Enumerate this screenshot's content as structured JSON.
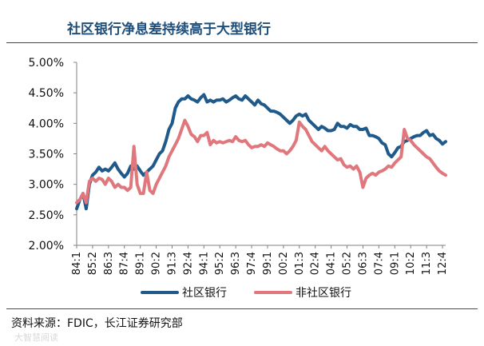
{
  "title": "社区银行净息差持续高于大型银行",
  "source": "资料来源：FDIC，长江证券研究部",
  "watermark": "大智慧阅读",
  "colors": {
    "title": "#1f4e79",
    "series_blue": "#1f5a8a",
    "series_pink": "#e0777d",
    "axis": "#808080"
  },
  "chart_data": {
    "type": "line",
    "title": "",
    "xlabel": "",
    "ylabel": "",
    "ylim": [
      2.0,
      5.0
    ],
    "yticks": [
      "2.00%",
      "2.50%",
      "3.00%",
      "3.50%",
      "4.00%",
      "4.50%",
      "5.00%"
    ],
    "ytick_values": [
      2.0,
      2.5,
      3.0,
      3.5,
      4.0,
      4.5,
      5.0
    ],
    "x_range": [
      1984.0,
      2013.0
    ],
    "xticks": [
      "84:1",
      "85:2",
      "86:3",
      "87:4",
      "89:1",
      "90:2",
      "91:3",
      "92:4",
      "94:1",
      "95:2",
      "96:3",
      "97:4",
      "99:1",
      "00:2",
      "01:3",
      "02:4",
      "04:1",
      "05:2",
      "06:3",
      "07:4",
      "09:1",
      "10:2",
      "11:3",
      "12:4"
    ],
    "xtick_values": [
      1984.0,
      1985.25,
      1986.5,
      1987.75,
      1989.0,
      1990.25,
      1991.5,
      1992.75,
      1994.0,
      1995.25,
      1996.5,
      1997.75,
      1999.0,
      2000.25,
      2001.5,
      2002.75,
      2004.0,
      2005.25,
      2006.5,
      2007.75,
      2009.0,
      2010.25,
      2011.5,
      2012.75
    ],
    "legend": "bottom",
    "grid": false,
    "series": [
      {
        "name": "社区银行",
        "color": "#1f5a8a",
        "points": [
          [
            1984.0,
            2.6
          ],
          [
            1984.25,
            2.75
          ],
          [
            1984.5,
            2.85
          ],
          [
            1984.75,
            2.6
          ],
          [
            1985.0,
            3.0
          ],
          [
            1985.25,
            3.15
          ],
          [
            1985.5,
            3.2
          ],
          [
            1985.75,
            3.28
          ],
          [
            1986.0,
            3.22
          ],
          [
            1986.25,
            3.25
          ],
          [
            1986.5,
            3.22
          ],
          [
            1986.75,
            3.28
          ],
          [
            1987.0,
            3.35
          ],
          [
            1987.25,
            3.25
          ],
          [
            1987.5,
            3.18
          ],
          [
            1987.75,
            3.12
          ],
          [
            1988.0,
            3.18
          ],
          [
            1988.25,
            3.3
          ],
          [
            1988.5,
            3.25
          ],
          [
            1988.75,
            3.3
          ],
          [
            1989.0,
            3.22
          ],
          [
            1989.25,
            3.15
          ],
          [
            1989.5,
            3.2
          ],
          [
            1989.75,
            3.25
          ],
          [
            1990.0,
            3.3
          ],
          [
            1990.25,
            3.4
          ],
          [
            1990.5,
            3.5
          ],
          [
            1990.75,
            3.55
          ],
          [
            1991.0,
            3.7
          ],
          [
            1991.25,
            3.9
          ],
          [
            1991.5,
            4.0
          ],
          [
            1991.75,
            4.25
          ],
          [
            1992.0,
            4.35
          ],
          [
            1992.25,
            4.4
          ],
          [
            1992.5,
            4.4
          ],
          [
            1992.75,
            4.45
          ],
          [
            1993.0,
            4.4
          ],
          [
            1993.25,
            4.38
          ],
          [
            1993.5,
            4.35
          ],
          [
            1993.75,
            4.42
          ],
          [
            1994.0,
            4.47
          ],
          [
            1994.25,
            4.35
          ],
          [
            1994.5,
            4.38
          ],
          [
            1994.75,
            4.35
          ],
          [
            1995.0,
            4.38
          ],
          [
            1995.25,
            4.38
          ],
          [
            1995.5,
            4.4
          ],
          [
            1995.75,
            4.35
          ],
          [
            1996.0,
            4.38
          ],
          [
            1996.25,
            4.42
          ],
          [
            1996.5,
            4.45
          ],
          [
            1996.75,
            4.4
          ],
          [
            1997.0,
            4.38
          ],
          [
            1997.25,
            4.45
          ],
          [
            1997.5,
            4.4
          ],
          [
            1997.75,
            4.35
          ],
          [
            1998.0,
            4.3
          ],
          [
            1998.25,
            4.38
          ],
          [
            1998.5,
            4.32
          ],
          [
            1998.75,
            4.3
          ],
          [
            1999.0,
            4.25
          ],
          [
            1999.25,
            4.2
          ],
          [
            1999.5,
            4.2
          ],
          [
            1999.75,
            4.18
          ],
          [
            2000.0,
            4.15
          ],
          [
            2000.25,
            4.1
          ],
          [
            2000.5,
            4.05
          ],
          [
            2000.75,
            4.0
          ],
          [
            2001.0,
            4.05
          ],
          [
            2001.25,
            4.12
          ],
          [
            2001.5,
            4.15
          ],
          [
            2001.75,
            4.12
          ],
          [
            2002.0,
            4.15
          ],
          [
            2002.25,
            4.05
          ],
          [
            2002.5,
            4.0
          ],
          [
            2002.75,
            3.95
          ],
          [
            2003.0,
            3.9
          ],
          [
            2003.25,
            3.95
          ],
          [
            2003.5,
            3.92
          ],
          [
            2003.75,
            3.88
          ],
          [
            2004.0,
            3.88
          ],
          [
            2004.25,
            3.9
          ],
          [
            2004.5,
            4.0
          ],
          [
            2004.75,
            3.95
          ],
          [
            2005.0,
            3.95
          ],
          [
            2005.25,
            3.92
          ],
          [
            2005.5,
            3.98
          ],
          [
            2005.75,
            3.95
          ],
          [
            2006.0,
            3.95
          ],
          [
            2006.25,
            3.9
          ],
          [
            2006.5,
            3.9
          ],
          [
            2006.75,
            3.92
          ],
          [
            2007.0,
            3.8
          ],
          [
            2007.25,
            3.8
          ],
          [
            2007.5,
            3.78
          ],
          [
            2007.75,
            3.75
          ],
          [
            2008.0,
            3.68
          ],
          [
            2008.25,
            3.65
          ],
          [
            2008.5,
            3.5
          ],
          [
            2008.75,
            3.45
          ],
          [
            2009.0,
            3.52
          ],
          [
            2009.25,
            3.6
          ],
          [
            2009.5,
            3.62
          ],
          [
            2009.75,
            3.7
          ],
          [
            2010.0,
            3.72
          ],
          [
            2010.25,
            3.75
          ],
          [
            2010.5,
            3.78
          ],
          [
            2010.75,
            3.8
          ],
          [
            2011.0,
            3.8
          ],
          [
            2011.25,
            3.85
          ],
          [
            2011.5,
            3.88
          ],
          [
            2011.75,
            3.8
          ],
          [
            2012.0,
            3.82
          ],
          [
            2012.25,
            3.75
          ],
          [
            2012.5,
            3.72
          ],
          [
            2012.75,
            3.66
          ],
          [
            2013.0,
            3.7
          ]
        ]
      },
      {
        "name": "非社区银行",
        "color": "#e0777d",
        "points": [
          [
            1984.0,
            2.7
          ],
          [
            1984.25,
            2.75
          ],
          [
            1984.5,
            2.85
          ],
          [
            1984.75,
            2.7
          ],
          [
            1985.0,
            3.05
          ],
          [
            1985.25,
            3.1
          ],
          [
            1985.5,
            3.05
          ],
          [
            1985.75,
            3.1
          ],
          [
            1986.0,
            3.08
          ],
          [
            1986.25,
            3.0
          ],
          [
            1986.5,
            3.1
          ],
          [
            1986.75,
            3.05
          ],
          [
            1987.0,
            2.95
          ],
          [
            1987.25,
            3.0
          ],
          [
            1987.5,
            2.95
          ],
          [
            1987.75,
            2.95
          ],
          [
            1988.0,
            2.9
          ],
          [
            1988.25,
            2.95
          ],
          [
            1988.5,
            3.62
          ],
          [
            1988.75,
            3.0
          ],
          [
            1989.0,
            2.85
          ],
          [
            1989.25,
            2.85
          ],
          [
            1989.5,
            3.2
          ],
          [
            1989.75,
            2.9
          ],
          [
            1990.0,
            2.85
          ],
          [
            1990.25,
            3.0
          ],
          [
            1990.5,
            3.1
          ],
          [
            1990.75,
            3.2
          ],
          [
            1991.0,
            3.3
          ],
          [
            1991.25,
            3.45
          ],
          [
            1991.5,
            3.55
          ],
          [
            1991.75,
            3.65
          ],
          [
            1992.0,
            3.75
          ],
          [
            1992.25,
            3.9
          ],
          [
            1992.5,
            4.05
          ],
          [
            1992.75,
            3.95
          ],
          [
            1993.0,
            3.82
          ],
          [
            1993.25,
            3.78
          ],
          [
            1993.5,
            3.7
          ],
          [
            1993.75,
            3.8
          ],
          [
            1994.0,
            3.8
          ],
          [
            1994.25,
            3.85
          ],
          [
            1994.5,
            3.65
          ],
          [
            1994.75,
            3.72
          ],
          [
            1995.0,
            3.68
          ],
          [
            1995.25,
            3.7
          ],
          [
            1995.5,
            3.68
          ],
          [
            1995.75,
            3.7
          ],
          [
            1996.0,
            3.72
          ],
          [
            1996.25,
            3.7
          ],
          [
            1996.5,
            3.78
          ],
          [
            1996.75,
            3.72
          ],
          [
            1997.0,
            3.7
          ],
          [
            1997.25,
            3.72
          ],
          [
            1997.5,
            3.65
          ],
          [
            1997.75,
            3.6
          ],
          [
            1998.0,
            3.62
          ],
          [
            1998.25,
            3.62
          ],
          [
            1998.5,
            3.65
          ],
          [
            1998.75,
            3.62
          ],
          [
            1999.0,
            3.68
          ],
          [
            1999.25,
            3.65
          ],
          [
            1999.5,
            3.62
          ],
          [
            1999.75,
            3.58
          ],
          [
            2000.0,
            3.55
          ],
          [
            2000.25,
            3.55
          ],
          [
            2000.5,
            3.5
          ],
          [
            2000.75,
            3.55
          ],
          [
            2001.0,
            3.62
          ],
          [
            2001.25,
            3.72
          ],
          [
            2001.5,
            4.02
          ],
          [
            2001.75,
            3.95
          ],
          [
            2002.0,
            3.9
          ],
          [
            2002.25,
            3.8
          ],
          [
            2002.5,
            3.7
          ],
          [
            2002.75,
            3.65
          ],
          [
            2003.0,
            3.6
          ],
          [
            2003.25,
            3.55
          ],
          [
            2003.5,
            3.62
          ],
          [
            2003.75,
            3.55
          ],
          [
            2004.0,
            3.5
          ],
          [
            2004.25,
            3.45
          ],
          [
            2004.5,
            3.4
          ],
          [
            2004.75,
            3.42
          ],
          [
            2005.0,
            3.32
          ],
          [
            2005.25,
            3.28
          ],
          [
            2005.5,
            3.3
          ],
          [
            2005.75,
            3.25
          ],
          [
            2006.0,
            3.3
          ],
          [
            2006.25,
            3.2
          ],
          [
            2006.5,
            2.95
          ],
          [
            2006.75,
            3.1
          ],
          [
            2007.0,
            3.15
          ],
          [
            2007.25,
            3.18
          ],
          [
            2007.5,
            3.15
          ],
          [
            2007.75,
            3.2
          ],
          [
            2008.0,
            3.22
          ],
          [
            2008.25,
            3.25
          ],
          [
            2008.5,
            3.3
          ],
          [
            2008.75,
            3.28
          ],
          [
            2009.0,
            3.35
          ],
          [
            2009.25,
            3.4
          ],
          [
            2009.5,
            3.45
          ],
          [
            2009.75,
            3.9
          ],
          [
            2010.0,
            3.75
          ],
          [
            2010.25,
            3.72
          ],
          [
            2010.5,
            3.65
          ],
          [
            2010.75,
            3.6
          ],
          [
            2011.0,
            3.55
          ],
          [
            2011.25,
            3.5
          ],
          [
            2011.5,
            3.45
          ],
          [
            2011.75,
            3.42
          ],
          [
            2012.0,
            3.35
          ],
          [
            2012.25,
            3.28
          ],
          [
            2012.5,
            3.22
          ],
          [
            2012.75,
            3.18
          ],
          [
            2013.0,
            3.15
          ]
        ]
      }
    ]
  }
}
